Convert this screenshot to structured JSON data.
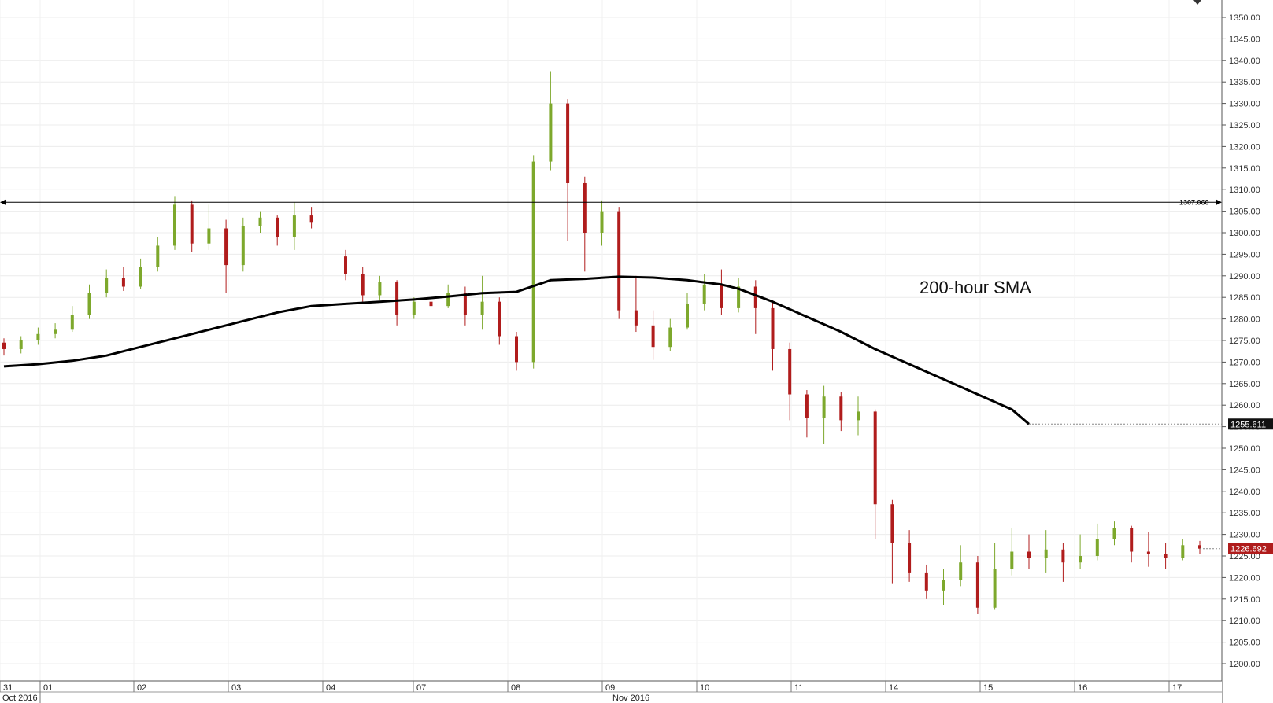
{
  "chart_data": {
    "type": "candlestick",
    "title": "",
    "annotation": "200-hour SMA",
    "y_range": [
      1195,
      1352.5
    ],
    "y_ticks": [
      "1200.00",
      "1205.00",
      "1210.00",
      "1215.00",
      "1220.00",
      "1225.00",
      "1230.00",
      "1235.00",
      "1240.00",
      "1245.00",
      "1250.00",
      "1255.00",
      "1260.00",
      "1265.00",
      "1270.00",
      "1275.00",
      "1280.00",
      "1285.00",
      "1290.00",
      "1295.00",
      "1300.00",
      "1305.00",
      "1310.00",
      "1315.00",
      "1320.00",
      "1325.00",
      "1330.00",
      "1335.00",
      "1340.00",
      "1345.00",
      "1350.00"
    ],
    "x_day_labels": [
      "31",
      "01",
      "02",
      "03",
      "04",
      "07",
      "08",
      "09",
      "10",
      "11",
      "14",
      "15",
      "16",
      "17"
    ],
    "x_month_labels": [
      "Oct 2016",
      "Nov 2016"
    ],
    "horizontal_line": {
      "value": 1307.06,
      "label": "1307.060"
    },
    "sma_current": {
      "value": 1255.611,
      "label": "1255.611"
    },
    "price_current": {
      "value": 1226.692,
      "label": "1226.692"
    },
    "sma_points": [
      [
        0,
        1269
      ],
      [
        2,
        1269.5
      ],
      [
        4,
        1270.3
      ],
      [
        6,
        1271.5
      ],
      [
        8,
        1273.5
      ],
      [
        10,
        1275.5
      ],
      [
        12,
        1277.5
      ],
      [
        14,
        1279.5
      ],
      [
        16,
        1281.5
      ],
      [
        18,
        1283
      ],
      [
        20,
        1283.5
      ],
      [
        22,
        1284
      ],
      [
        24,
        1284.5
      ],
      [
        26,
        1285.2
      ],
      [
        28,
        1286
      ],
      [
        30,
        1286.3
      ],
      [
        32,
        1289
      ],
      [
        34,
        1289.3
      ],
      [
        36,
        1289.8
      ],
      [
        38,
        1289.6
      ],
      [
        40,
        1289
      ],
      [
        42,
        1288
      ],
      [
        43,
        1287
      ],
      [
        45,
        1284
      ],
      [
        47,
        1280.5
      ],
      [
        49,
        1277
      ],
      [
        51,
        1273
      ],
      [
        53,
        1269.5
      ],
      [
        55,
        1266
      ],
      [
        57,
        1262.5
      ],
      [
        59,
        1259
      ],
      [
        60,
        1255.6
      ]
    ],
    "candles": [
      [
        0,
        1274.5,
        1273.0,
        1275.5,
        1271.5
      ],
      [
        1,
        1273.0,
        1275.0,
        1276.0,
        1272.0
      ],
      [
        2,
        1275.0,
        1276.5,
        1278.0,
        1274.0
      ],
      [
        3,
        1276.5,
        1277.5,
        1279.0,
        1275.5
      ],
      [
        4,
        1277.5,
        1281.0,
        1283.0,
        1277.0
      ],
      [
        5,
        1281.0,
        1286.0,
        1288.0,
        1280.0
      ],
      [
        6,
        1286.0,
        1289.5,
        1291.5,
        1285.0
      ],
      [
        7,
        1289.5,
        1287.5,
        1292.0,
        1286.5
      ],
      [
        8,
        1287.5,
        1292.0,
        1294.0,
        1287.0
      ],
      [
        9,
        1292.0,
        1297.0,
        1299.0,
        1291.0
      ],
      [
        10,
        1297.0,
        1306.5,
        1308.5,
        1296.0
      ],
      [
        11,
        1306.5,
        1297.5,
        1307.5,
        1295.5
      ],
      [
        12,
        1297.5,
        1301.0,
        1306.5,
        1296.0
      ],
      [
        13,
        1301.0,
        1292.5,
        1303.0,
        1286.0
      ],
      [
        14,
        1292.5,
        1301.5,
        1303.5,
        1291.0
      ],
      [
        15,
        1301.5,
        1303.5,
        1305.0,
        1300.0
      ],
      [
        16,
        1303.5,
        1299.0,
        1304.0,
        1297.0
      ],
      [
        17,
        1299.0,
        1304.0,
        1307.0,
        1296.0
      ],
      [
        18,
        1304.0,
        1302.5,
        1306.0,
        1301.0
      ],
      [
        20,
        1294.5,
        1290.5,
        1296.0,
        1289.0
      ],
      [
        21,
        1290.5,
        1285.5,
        1292.0,
        1284.0
      ],
      [
        22,
        1285.5,
        1288.5,
        1290.0,
        1284.5
      ],
      [
        23,
        1288.5,
        1281.0,
        1289.0,
        1278.5
      ],
      [
        24,
        1281.0,
        1284.0,
        1285.0,
        1280.0
      ],
      [
        25,
        1284.0,
        1283.0,
        1286.0,
        1281.5
      ],
      [
        26,
        1283.0,
        1286.0,
        1288.0,
        1282.5
      ],
      [
        27,
        1286.0,
        1281.0,
        1287.5,
        1278.5
      ],
      [
        28,
        1281.0,
        1284.0,
        1290.0,
        1277.5
      ],
      [
        29,
        1284.0,
        1276.0,
        1285.0,
        1274.0
      ],
      [
        30,
        1276.0,
        1270.0,
        1277.0,
        1268.0
      ],
      [
        31,
        1270.0,
        1316.5,
        1318.0,
        1268.5
      ],
      [
        32,
        1316.5,
        1330.0,
        1337.5,
        1314.5
      ],
      [
        33,
        1330.0,
        1311.5,
        1331.0,
        1298.0
      ],
      [
        34,
        1311.5,
        1300.0,
        1313.0,
        1291.0
      ],
      [
        35,
        1300.0,
        1305.0,
        1307.5,
        1297.0
      ],
      [
        36,
        1305.0,
        1282.0,
        1306.0,
        1280.0
      ],
      [
        37,
        1282.0,
        1278.5,
        1290.0,
        1277.0
      ],
      [
        38,
        1278.5,
        1273.5,
        1282.0,
        1270.5
      ],
      [
        39,
        1273.5,
        1278.0,
        1280.0,
        1272.5
      ],
      [
        40,
        1278.0,
        1283.5,
        1286.0,
        1277.5
      ],
      [
        41,
        1283.5,
        1288.0,
        1290.5,
        1282.0
      ],
      [
        42,
        1288.0,
        1282.5,
        1291.5,
        1281.0
      ],
      [
        43,
        1282.5,
        1287.5,
        1289.5,
        1281.5
      ],
      [
        44,
        1287.5,
        1282.5,
        1289.0,
        1276.5
      ],
      [
        45,
        1282.5,
        1273.0,
        1284.0,
        1268.0
      ],
      [
        46,
        1273.0,
        1262.5,
        1274.5,
        1256.5
      ],
      [
        47,
        1262.5,
        1257.0,
        1263.5,
        1252.5
      ],
      [
        48,
        1257.0,
        1262.0,
        1264.5,
        1251.0
      ],
      [
        49,
        1262.0,
        1256.5,
        1263.0,
        1254.0
      ],
      [
        50,
        1256.5,
        1258.5,
        1262.0,
        1253.0
      ],
      [
        51,
        1258.5,
        1237.0,
        1259.0,
        1229.0
      ],
      [
        52,
        1237.0,
        1228.0,
        1238.0,
        1218.5
      ],
      [
        53,
        1228.0,
        1221.0,
        1231.0,
        1219.0
      ],
      [
        54,
        1221.0,
        1217.0,
        1223.0,
        1215.0
      ],
      [
        55,
        1217.0,
        1219.5,
        1222.0,
        1213.5
      ],
      [
        56,
        1219.5,
        1223.5,
        1227.5,
        1218.0
      ],
      [
        57,
        1223.5,
        1213.0,
        1225.0,
        1211.5
      ],
      [
        58,
        1213.0,
        1222.0,
        1228.0,
        1212.5
      ],
      [
        59,
        1222.0,
        1226.0,
        1231.5,
        1220.5
      ],
      [
        60,
        1226.0,
        1224.5,
        1230.0,
        1222.0
      ],
      [
        61,
        1224.5,
        1226.5,
        1231.0,
        1221.0
      ],
      [
        62,
        1226.5,
        1223.5,
        1228.0,
        1219.0
      ],
      [
        63,
        1223.5,
        1225.0,
        1230.0,
        1222.0
      ],
      [
        64,
        1225.0,
        1229.0,
        1232.5,
        1224.0
      ],
      [
        65,
        1229.0,
        1231.5,
        1233.0,
        1227.5
      ],
      [
        66,
        1231.5,
        1226.0,
        1232.0,
        1223.5
      ],
      [
        67,
        1226.0,
        1225.5,
        1230.5,
        1222.5
      ],
      [
        68,
        1225.5,
        1224.5,
        1228.0,
        1222.0
      ],
      [
        69,
        1224.5,
        1227.5,
        1229.0,
        1224.0
      ],
      [
        70,
        1227.5,
        1226.7,
        1228.5,
        1225.5
      ]
    ]
  }
}
